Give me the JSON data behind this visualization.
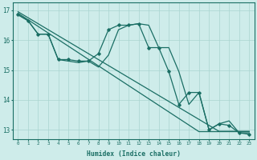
{
  "xlabel": "Humidex (Indice chaleur)",
  "ylabel": "",
  "background_color": "#ceecea",
  "grid_color": "#aad4d0",
  "line_color": "#1a6e64",
  "xlim": [
    -0.5,
    23.5
  ],
  "ylim": [
    12.7,
    17.25
  ],
  "yticks": [
    13,
    14,
    15,
    16,
    17
  ],
  "xticks": [
    0,
    1,
    2,
    3,
    4,
    5,
    6,
    7,
    8,
    9,
    10,
    11,
    12,
    13,
    14,
    15,
    16,
    17,
    18,
    19,
    20,
    21,
    22,
    23
  ],
  "lines": [
    {
      "x": [
        0,
        1,
        2,
        3,
        4,
        5,
        6,
        7,
        8,
        9,
        10,
        11,
        12,
        13,
        14,
        15,
        16,
        17,
        18,
        19,
        20,
        21,
        22,
        23
      ],
      "y": [
        16.95,
        16.75,
        16.55,
        16.35,
        16.15,
        15.95,
        15.75,
        15.55,
        15.35,
        15.15,
        14.95,
        14.75,
        14.55,
        14.35,
        14.15,
        13.95,
        13.75,
        13.55,
        13.35,
        13.15,
        12.95,
        12.95,
        12.95,
        12.95
      ],
      "marker": null
    },
    {
      "x": [
        0,
        1,
        2,
        3,
        4,
        5,
        6,
        7,
        8,
        9,
        10,
        11,
        12,
        13,
        14,
        15,
        16,
        17,
        18,
        19,
        20,
        21,
        22,
        23
      ],
      "y": [
        16.9,
        16.68,
        16.46,
        16.24,
        16.02,
        15.8,
        15.58,
        15.36,
        15.14,
        14.92,
        14.7,
        14.48,
        14.26,
        14.04,
        13.82,
        13.6,
        13.38,
        13.16,
        12.94,
        12.94,
        12.94,
        12.94,
        12.94,
        12.94
      ],
      "marker": null
    },
    {
      "x": [
        0,
        1,
        2,
        3,
        4,
        5,
        6,
        7,
        8,
        9,
        10,
        11,
        12,
        13,
        14,
        15,
        16,
        17,
        18,
        19,
        20,
        21,
        22,
        23
      ],
      "y": [
        16.85,
        16.65,
        16.2,
        16.2,
        15.35,
        15.35,
        15.3,
        15.3,
        15.55,
        16.35,
        16.5,
        16.5,
        16.55,
        15.75,
        15.75,
        14.95,
        13.85,
        14.25,
        14.25,
        13.0,
        13.2,
        13.15,
        12.9,
        12.85
      ],
      "marker": "D"
    },
    {
      "x": [
        0,
        1,
        2,
        3,
        4,
        5,
        6,
        7,
        8,
        9,
        10,
        11,
        12,
        13,
        14,
        15,
        16,
        17,
        18,
        19,
        20,
        21,
        22,
        23
      ],
      "y": [
        16.85,
        16.65,
        16.2,
        16.2,
        15.35,
        15.3,
        15.25,
        15.3,
        15.1,
        15.5,
        16.35,
        16.5,
        16.55,
        16.5,
        15.75,
        15.75,
        14.95,
        13.85,
        14.25,
        13.0,
        13.2,
        13.3,
        12.9,
        12.9
      ],
      "marker": null
    }
  ]
}
